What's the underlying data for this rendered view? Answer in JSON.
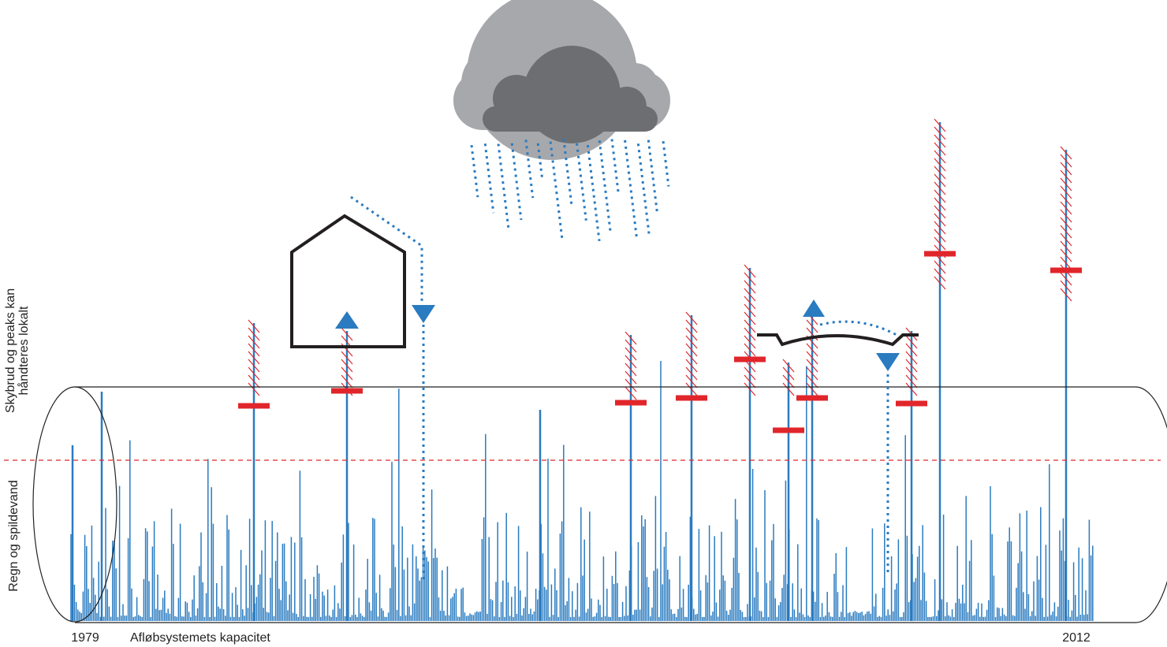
{
  "labels": {
    "axis_start": "1979",
    "axis_end": "2012",
    "capacity": "Afløbsystemets kapacitet",
    "upper_zone": [
      "Skybrud og peaks kan",
      "håndteres lokalt"
    ],
    "lower_zone": "Regn og spildevand"
  }
}
